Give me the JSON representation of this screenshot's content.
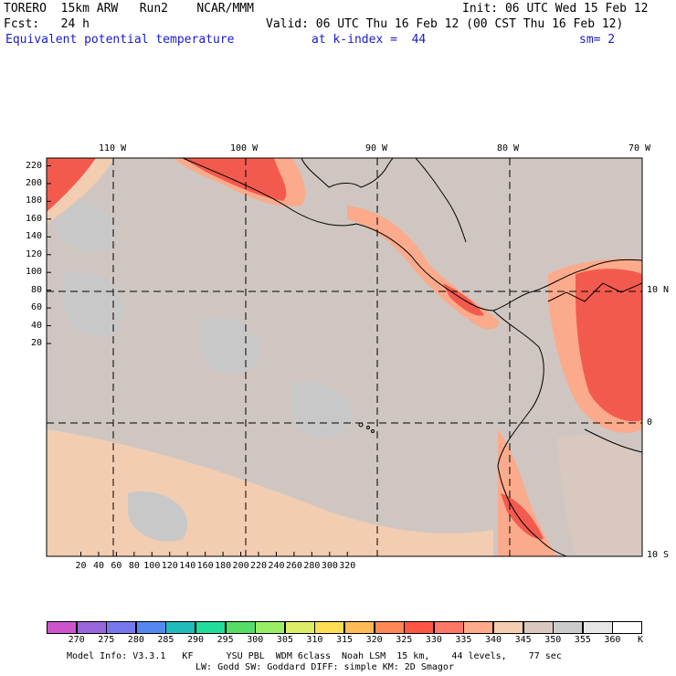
{
  "header": {
    "model": "TORERO  15km ARW   Run2    NCAR/MMM",
    "init": "Init: 06 UTC Wed 15 Feb 12",
    "fcst": "Fcst:   24 h",
    "valid": "Valid: 06 UTC Thu 16 Feb 12 (00 CST Thu 16 Feb 12)",
    "field": "Equivalent potential temperature",
    "level": "at k-index =  44",
    "smooth": "sm= 2"
  },
  "lon_labels": [
    "110 W",
    "100 W",
    "90 W",
    "80 W",
    "70 W"
  ],
  "lat_labels": [
    "10 N",
    "0",
    "10 S"
  ],
  "y_ticks": [
    "220",
    "200",
    "180",
    "160",
    "140",
    "120",
    "100",
    "80",
    "60",
    "40",
    "20"
  ],
  "x_ticks": [
    "20",
    "40",
    "60",
    "80",
    "100",
    "120",
    "140",
    "160",
    "180",
    "200",
    "220",
    "240",
    "260",
    "280",
    "300",
    "320"
  ],
  "colorbar": {
    "labels": [
      "270",
      "275",
      "280",
      "285",
      "290",
      "295",
      "300",
      "305",
      "310",
      "315",
      "320",
      "325",
      "330",
      "335",
      "340",
      "345",
      "350",
      "355",
      "360"
    ],
    "unit": "K",
    "colors": [
      "#cc55cc",
      "#9966dd",
      "#7777ee",
      "#5588ee",
      "#22bbbb",
      "#22dd99",
      "#55dd66",
      "#99ee66",
      "#ddee66",
      "#ffdd55",
      "#ffbb55",
      "#ff8855",
      "#ff5544",
      "#ff7766",
      "#ffaa88",
      "#f5cdb0",
      "#d8c8c0",
      "#cbcbcb",
      "#e6e6e6",
      "#ffffff"
    ]
  },
  "footer": {
    "line1": "Model Info: V3.3.1   KF      YSU PBL  WDM 6class  Noah LSM  15 km,    44 levels,    77 sec",
    "line2": "LW: Godd SW: Goddard DIFF: simple KM: 2D Smagor"
  },
  "colors": {
    "ocean": "#cfc6c1",
    "warm_light": "#f3cdb1",
    "warm_mid": "#fbaa8c",
    "warm_hot": "#f35a4e",
    "grey_patch": "#c8c8c8",
    "title_blue": "#1a1acc"
  }
}
